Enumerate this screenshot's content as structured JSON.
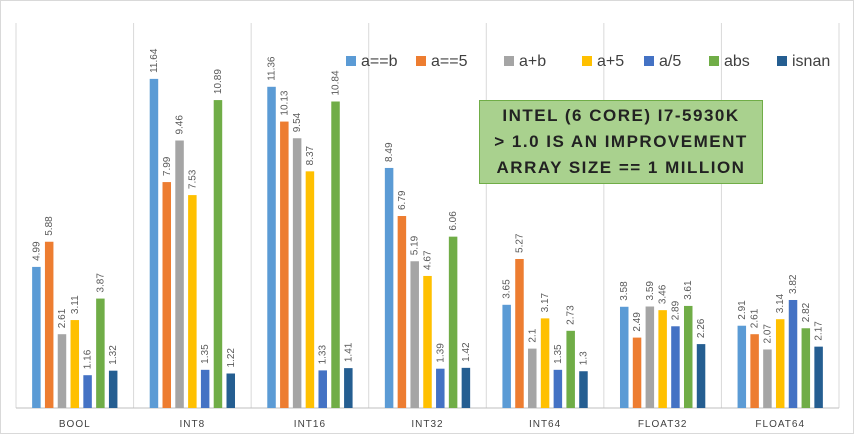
{
  "chart_data": {
    "type": "bar",
    "categories": [
      "BOOL",
      "INT8",
      "INT16",
      "INT32",
      "INT64",
      "FLOAT32",
      "FLOAT64"
    ],
    "series": [
      {
        "name": "a==b",
        "color": "#5b9bd5",
        "values": [
          4.99,
          11.64,
          11.36,
          8.49,
          3.65,
          3.58,
          2.91
        ]
      },
      {
        "name": "a==5",
        "color": "#ed7d31",
        "values": [
          5.88,
          7.99,
          10.13,
          6.79,
          5.27,
          2.49,
          2.61
        ]
      },
      {
        "name": "a+b",
        "color": "#a5a5a5",
        "values": [
          2.61,
          9.46,
          9.54,
          5.19,
          2.1,
          3.59,
          2.07
        ]
      },
      {
        "name": "a+5",
        "color": "#ffc000",
        "values": [
          3.11,
          7.53,
          8.37,
          4.67,
          3.17,
          3.46,
          3.14
        ]
      },
      {
        "name": "a/5",
        "color": "#4472c4",
        "values": [
          1.16,
          1.35,
          1.33,
          1.39,
          1.35,
          2.89,
          3.82
        ]
      },
      {
        "name": "abs",
        "color": "#70ad47",
        "values": [
          3.87,
          10.89,
          10.84,
          6.06,
          2.73,
          3.61,
          2.82
        ]
      },
      {
        "name": "isnan",
        "color": "#255e91",
        "values": [
          1.32,
          1.22,
          1.41,
          1.42,
          1.3,
          2.26,
          2.17
        ]
      }
    ],
    "ylim": [
      0,
      12
    ],
    "grid": "vertical separators between categories",
    "legend_position": "top-right",
    "annotation": [
      "INTEL (6 CORE) I7-5930K",
      "> 1.0 IS AN IMPROVEMENT",
      "ARRAY SIZE == 1 MILLION"
    ]
  }
}
